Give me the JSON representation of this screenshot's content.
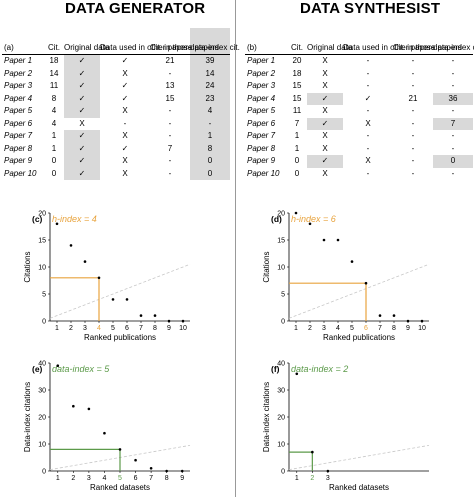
{
  "colors": {
    "orange": "#e8a33d",
    "green": "#5b9a49",
    "gray_cell": "#d9d9d9",
    "ref_line": "#c8c8c8"
  },
  "left": {
    "heading": "DATA GENERATOR",
    "panel_label": "(a)",
    "columns": [
      "Cit.",
      "Original data",
      "Data used in other papers",
      "Cit. in those papers",
      "data-index cit."
    ],
    "rows": [
      {
        "paper": "Paper 1",
        "cit": "18",
        "orig": "✓",
        "used": "✓",
        "cit_those": "21",
        "di": "39",
        "hl_orig": true,
        "hl_di": true
      },
      {
        "paper": "Paper 2",
        "cit": "14",
        "orig": "✓",
        "used": "X",
        "cit_those": "-",
        "di": "14",
        "hl_orig": true,
        "hl_di": true
      },
      {
        "paper": "Paper 3",
        "cit": "11",
        "orig": "✓",
        "used": "✓",
        "cit_those": "13",
        "di": "24",
        "hl_orig": true,
        "hl_di": true
      },
      {
        "paper": "Paper 4",
        "cit": "8",
        "orig": "✓",
        "used": "✓",
        "cit_those": "15",
        "di": "23",
        "hl_orig": true,
        "hl_di": true
      },
      {
        "paper": "Paper 5",
        "cit": "4",
        "orig": "✓",
        "used": "X",
        "cit_those": "-",
        "di": "4",
        "hl_orig": true,
        "hl_di": true
      },
      {
        "paper": "Paper 6",
        "cit": "4",
        "orig": "X",
        "used": "-",
        "cit_those": "-",
        "di": "-",
        "hl_orig": false,
        "hl_di": false
      },
      {
        "paper": "Paper 7",
        "cit": "1",
        "orig": "✓",
        "used": "X",
        "cit_those": "-",
        "di": "1",
        "hl_orig": true,
        "hl_di": true
      },
      {
        "paper": "Paper 8",
        "cit": "1",
        "orig": "✓",
        "used": "✓",
        "cit_those": "7",
        "di": "8",
        "hl_orig": true,
        "hl_di": true
      },
      {
        "paper": "Paper 9",
        "cit": "0",
        "orig": "✓",
        "used": "X",
        "cit_those": "-",
        "di": "0",
        "hl_orig": true,
        "hl_di": true
      },
      {
        "paper": "Paper 10",
        "cit": "0",
        "orig": "✓",
        "used": "X",
        "cit_those": "-",
        "di": "0",
        "hl_orig": true,
        "hl_di": true
      }
    ]
  },
  "right": {
    "heading": "DATA SYNTHESIST",
    "panel_label": "(b)",
    "columns": [
      "Cit.",
      "Original data",
      "Data used in other papers",
      "Cit. in those papers",
      "data-index cit."
    ],
    "rows": [
      {
        "paper": "Paper 1",
        "cit": "20",
        "orig": "X",
        "used": "-",
        "cit_those": "-",
        "di": "-",
        "hl_orig": false,
        "hl_di": false
      },
      {
        "paper": "Paper 2",
        "cit": "18",
        "orig": "X",
        "used": "-",
        "cit_those": "-",
        "di": "-",
        "hl_orig": false,
        "hl_di": false
      },
      {
        "paper": "Paper 3",
        "cit": "15",
        "orig": "X",
        "used": "-",
        "cit_those": "-",
        "di": "-",
        "hl_orig": false,
        "hl_di": false
      },
      {
        "paper": "Paper 4",
        "cit": "15",
        "orig": "✓",
        "used": "✓",
        "cit_those": "21",
        "di": "36",
        "hl_orig": true,
        "hl_di": true
      },
      {
        "paper": "Paper 5",
        "cit": "11",
        "orig": "X",
        "used": "-",
        "cit_those": "-",
        "di": "-",
        "hl_orig": false,
        "hl_di": false
      },
      {
        "paper": "Paper 6",
        "cit": "7",
        "orig": "✓",
        "used": "X",
        "cit_those": "-",
        "di": "7",
        "hl_orig": true,
        "hl_di": true
      },
      {
        "paper": "Paper 7",
        "cit": "1",
        "orig": "X",
        "used": "-",
        "cit_those": "-",
        "di": "-",
        "hl_orig": false,
        "hl_di": false
      },
      {
        "paper": "Paper 8",
        "cit": "1",
        "orig": "X",
        "used": "-",
        "cit_those": "-",
        "di": "-",
        "hl_orig": false,
        "hl_di": false
      },
      {
        "paper": "Paper 9",
        "cit": "0",
        "orig": "✓",
        "used": "X",
        "cit_those": "-",
        "di": "0",
        "hl_orig": true,
        "hl_di": true
      },
      {
        "paper": "Paper 10",
        "cit": "0",
        "orig": "X",
        "used": "-",
        "cit_those": "-",
        "di": "-",
        "hl_orig": false,
        "hl_di": false
      }
    ]
  },
  "chart_data": [
    {
      "panel": "(c)",
      "type": "scatter",
      "annotation": "h-index = 4",
      "annotation_color": "#e8a33d",
      "index": 4,
      "index_y": 8,
      "xlabel": "Ranked publications",
      "ylabel": "Citations",
      "x": [
        1,
        2,
        3,
        4,
        5,
        6,
        7,
        8,
        9,
        10
      ],
      "y": [
        18,
        14,
        11,
        8,
        4,
        4,
        1,
        1,
        0,
        0
      ],
      "xlim": [
        0.5,
        10.5
      ],
      "ylim": [
        0,
        20
      ],
      "xticks": [
        1,
        2,
        3,
        4,
        5,
        6,
        7,
        8,
        9,
        10
      ],
      "yticks": [
        0,
        5,
        10,
        15,
        20
      ],
      "reference_line": "y = x"
    },
    {
      "panel": "(d)",
      "type": "scatter",
      "annotation": "h-index = 6",
      "annotation_color": "#e8a33d",
      "index": 6,
      "index_y": 7,
      "xlabel": "Ranked publications",
      "ylabel": "Citations",
      "x": [
        1,
        2,
        3,
        4,
        5,
        6,
        7,
        8,
        9,
        10
      ],
      "y": [
        20,
        18,
        15,
        15,
        11,
        7,
        1,
        1,
        0,
        0
      ],
      "xlim": [
        0.5,
        10.5
      ],
      "ylim": [
        0,
        20
      ],
      "xticks": [
        1,
        2,
        3,
        4,
        5,
        6,
        7,
        8,
        9,
        10
      ],
      "yticks": [
        0,
        5,
        10,
        15,
        20
      ],
      "reference_line": "y = x"
    },
    {
      "panel": "(e)",
      "type": "scatter",
      "annotation": "data-index = 5",
      "annotation_color": "#5b9a49",
      "index": 5,
      "index_y": 8,
      "xlabel": "Ranked datasets",
      "ylabel": "Data-index citations",
      "x": [
        1,
        2,
        3,
        4,
        5,
        6,
        7,
        8,
        9
      ],
      "y": [
        39,
        24,
        23,
        14,
        8,
        4,
        1,
        0,
        0
      ],
      "xlim": [
        0.5,
        9.5
      ],
      "ylim": [
        0,
        40
      ],
      "xticks": [
        1,
        2,
        3,
        4,
        5,
        6,
        7,
        8,
        9
      ],
      "yticks": [
        0,
        10,
        20,
        30,
        40
      ],
      "reference_line": "y = x"
    },
    {
      "panel": "(f)",
      "type": "scatter",
      "annotation": "data-index = 2",
      "annotation_color": "#5b9a49",
      "index": 2,
      "index_y": 7,
      "xlabel": "Ranked datasets",
      "ylabel": "Data-index citations",
      "x": [
        1,
        2,
        3
      ],
      "y": [
        36,
        7,
        0
      ],
      "xlim": [
        0.5,
        9.5
      ],
      "ylim": [
        0,
        40
      ],
      "xticks": [
        1,
        2,
        3
      ],
      "yticks": [
        0,
        10,
        20,
        30,
        40
      ],
      "reference_line": "y = x"
    }
  ]
}
